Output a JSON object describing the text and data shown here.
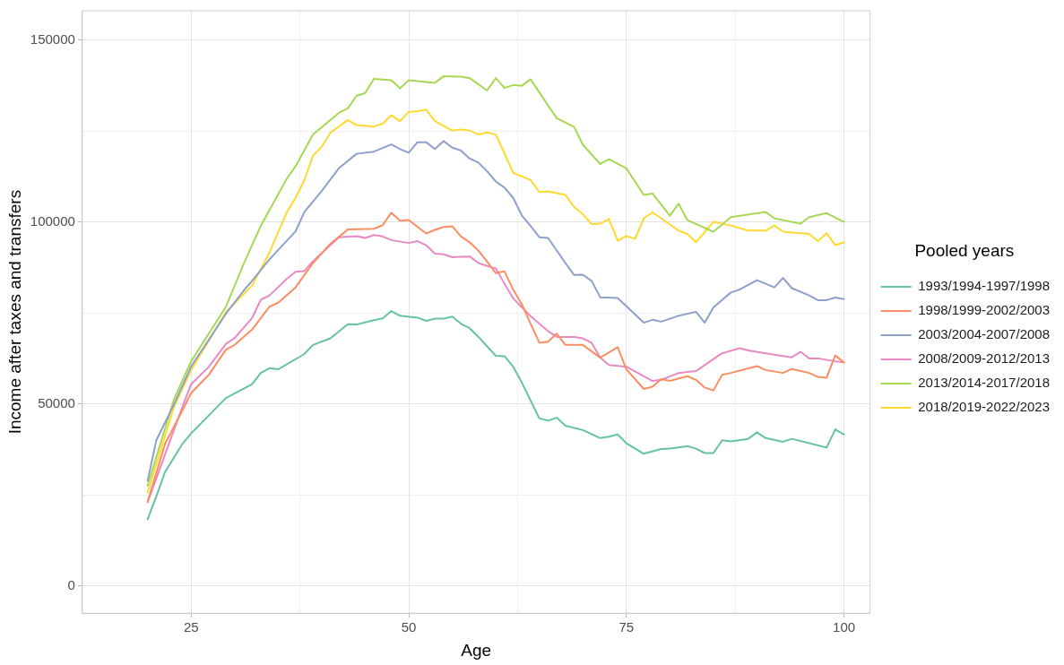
{
  "chart_data": {
    "type": "line",
    "xlabel": "Age",
    "ylabel": "Income after taxes and transfers",
    "legend_title": "Pooled years",
    "legend": "right",
    "grid": true,
    "marker": "none",
    "line_style": "solid",
    "xlim": [
      12.5,
      103
    ],
    "xticks": [
      25,
      {
        "value": 37.5,
        "label": null
      },
      50,
      {
        "value": 62.5,
        "label": null
      },
      75,
      {
        "value": 87.5,
        "label": null
      },
      100
    ],
    "ylim": [
      -7500,
      158000
    ],
    "yticks": [
      0,
      {
        "value": 25000,
        "label": null
      },
      50000,
      {
        "value": 75000,
        "label": null
      },
      100000,
      {
        "value": 125000,
        "label": null
      },
      150000
    ],
    "series": [
      {
        "name": "1993/1994-1997/1998",
        "color": "#66c2a5",
        "x": [
          20,
          21,
          22,
          24,
          25,
          29,
          32,
          33,
          34,
          35,
          38,
          39,
          41,
          43,
          44,
          46,
          47,
          48,
          49,
          51,
          52,
          53,
          54,
          55,
          56,
          57,
          58,
          59,
          60,
          61,
          62,
          63,
          64,
          65,
          66,
          67,
          68,
          70,
          72,
          73,
          74,
          75,
          77,
          79,
          80,
          82,
          83,
          84,
          85,
          86,
          87,
          89,
          90,
          91,
          93,
          94,
          96,
          98,
          99,
          100
        ],
        "values": [
          18300,
          24600,
          31300,
          39000,
          41900,
          51600,
          55400,
          58500,
          59800,
          59500,
          63700,
          66200,
          68000,
          71900,
          71800,
          73000,
          73500,
          75500,
          74200,
          73700,
          72800,
          73400,
          73400,
          74000,
          72000,
          70800,
          68400,
          65800,
          63200,
          63100,
          60200,
          55800,
          50900,
          46000,
          45400,
          46200,
          44000,
          42800,
          40600,
          41000,
          41600,
          39200,
          36300,
          37600,
          37700,
          38400,
          37700,
          36500,
          36500,
          40000,
          39700,
          40400,
          42200,
          40600,
          39600,
          40400,
          39200,
          38000,
          43000,
          41600
        ]
      },
      {
        "name": "1998/1999-2002/2003",
        "color": "#fc8d62",
        "x": [
          20,
          22,
          24,
          25,
          27,
          29,
          30,
          32,
          34,
          35,
          37,
          38,
          39,
          41,
          43,
          46,
          47,
          48,
          49,
          50,
          52,
          53,
          54,
          55,
          56,
          57,
          58,
          59,
          60,
          61,
          62,
          63,
          64,
          65,
          66,
          67,
          68,
          70,
          72,
          74,
          75,
          77,
          78,
          79,
          80,
          82,
          83,
          84,
          85,
          86,
          87,
          90,
          91,
          93,
          94,
          96,
          97,
          98,
          99,
          100
        ],
        "values": [
          23100,
          39000,
          48200,
          53000,
          57900,
          64900,
          66200,
          70400,
          76700,
          77800,
          82000,
          85400,
          88700,
          94000,
          97900,
          98100,
          99100,
          102500,
          100300,
          100500,
          96800,
          97800,
          98600,
          98800,
          96000,
          94400,
          92100,
          89100,
          85900,
          86400,
          81400,
          77300,
          72000,
          66800,
          67100,
          69300,
          66200,
          66200,
          62700,
          65600,
          59500,
          54100,
          54700,
          56800,
          56300,
          57600,
          56600,
          54500,
          53700,
          58000,
          58500,
          60400,
          59300,
          58500,
          59600,
          58500,
          57400,
          57200,
          63300,
          61400
        ]
      },
      {
        "name": "2003/2004-2007/2008",
        "color": "#8da0cb",
        "x": [
          20,
          21,
          23,
          25,
          27,
          29,
          31,
          32,
          34,
          37,
          38,
          40,
          42,
          44,
          46,
          48,
          49,
          50,
          51,
          52,
          53,
          54,
          55,
          56,
          57,
          58,
          59,
          60,
          61,
          62,
          63,
          64,
          65,
          66,
          68,
          69,
          70,
          71,
          72,
          74,
          77,
          78,
          79,
          80,
          81,
          83,
          84,
          85,
          87,
          88,
          90,
          92,
          93,
          94,
          96,
          97,
          98,
          99,
          100
        ],
        "values": [
          28900,
          40000,
          49700,
          60300,
          67500,
          74800,
          81000,
          83800,
          89700,
          97400,
          102700,
          108500,
          114800,
          118700,
          119300,
          121300,
          120000,
          119000,
          121900,
          121900,
          120000,
          122200,
          120400,
          119600,
          117400,
          116300,
          113900,
          111100,
          109400,
          106600,
          101700,
          98900,
          95800,
          95600,
          88700,
          85400,
          85500,
          83800,
          79300,
          79100,
          72300,
          73100,
          72600,
          73400,
          74200,
          75300,
          72300,
          76500,
          80600,
          81400,
          84000,
          82000,
          84600,
          81800,
          79800,
          78500,
          78500,
          79200,
          78800
        ]
      },
      {
        "name": "2008/2009-2012/2013",
        "color": "#e78ac3",
        "x": [
          20,
          22,
          24,
          25,
          27,
          29,
          30,
          32,
          33,
          34,
          36,
          37,
          38,
          39,
          42,
          44,
          45,
          46,
          47,
          48,
          50,
          51,
          52,
          53,
          54,
          55,
          57,
          58,
          59,
          60,
          61,
          62,
          63,
          64,
          65,
          66,
          67,
          69,
          70,
          71,
          72,
          73,
          75,
          78,
          79,
          81,
          83,
          85,
          86,
          88,
          89,
          91,
          94,
          95,
          96,
          97,
          99,
          100
        ],
        "values": [
          23000,
          36100,
          49200,
          55400,
          60100,
          66500,
          68100,
          73600,
          78600,
          79800,
          84400,
          86300,
          86500,
          89200,
          95800,
          96100,
          95600,
          96400,
          96000,
          95000,
          94200,
          94700,
          93600,
          91300,
          91100,
          90300,
          90500,
          88700,
          87900,
          87200,
          83000,
          79000,
          76500,
          74100,
          72000,
          70000,
          68400,
          68400,
          68000,
          66800,
          62700,
          60700,
          60200,
          56300,
          56600,
          58500,
          59000,
          62300,
          63900,
          65300,
          64700,
          63900,
          62800,
          64300,
          62500,
          62500,
          61700,
          61400
        ]
      },
      {
        "name": "2013/2014-2017/2018",
        "color": "#a6d854",
        "x": [
          20,
          23,
          25,
          29,
          31,
          33,
          35,
          36,
          37,
          39,
          40,
          42,
          43,
          44,
          45,
          46,
          48,
          49,
          50,
          53,
          54,
          56,
          57,
          59,
          60,
          61,
          62,
          63,
          64,
          66,
          67,
          69,
          70,
          72,
          73,
          75,
          77,
          78,
          80,
          81,
          82,
          85,
          86,
          87,
          91,
          92,
          95,
          96,
          98,
          100
        ],
        "values": [
          27500,
          51100,
          61700,
          76700,
          88300,
          98900,
          107600,
          111900,
          115300,
          124000,
          126000,
          130000,
          131200,
          134600,
          135400,
          139300,
          138900,
          136700,
          138900,
          138200,
          140000,
          139900,
          139500,
          136100,
          139500,
          136800,
          137600,
          137400,
          139200,
          132000,
          128500,
          126100,
          121200,
          115900,
          117200,
          114700,
          107400,
          107800,
          101700,
          105000,
          100500,
          97300,
          99300,
          101300,
          102700,
          101000,
          99500,
          101300,
          102400,
          100000
        ]
      },
      {
        "name": "2018/2019-2022/2023",
        "color": "#ffd92f",
        "x": [
          20,
          23,
          25,
          29,
          32,
          34,
          36,
          37,
          38,
          39,
          40,
          41,
          43,
          44,
          46,
          47,
          48,
          49,
          50,
          51,
          52,
          53,
          55,
          56,
          57,
          58,
          59,
          60,
          61,
          62,
          64,
          65,
          66,
          68,
          69,
          70,
          71,
          72,
          73,
          74,
          75,
          76,
          77,
          78,
          79,
          81,
          82,
          83,
          85,
          87,
          89,
          91,
          92,
          93,
          96,
          97,
          98,
          99,
          100
        ],
        "values": [
          25600,
          49000,
          59300,
          75200,
          82500,
          91600,
          102700,
          106600,
          111400,
          118200,
          120600,
          124500,
          128000,
          126600,
          126200,
          126900,
          129300,
          127700,
          130200,
          130400,
          130800,
          127700,
          125100,
          125400,
          125100,
          124000,
          124600,
          124000,
          118800,
          113500,
          111500,
          108200,
          108400,
          107400,
          104100,
          102100,
          99400,
          99500,
          100800,
          94800,
          96100,
          95300,
          101000,
          102600,
          101000,
          97600,
          96700,
          94400,
          100000,
          99000,
          97600,
          97600,
          99000,
          97300,
          96700,
          94700,
          96900,
          93600,
          94400
        ]
      }
    ]
  }
}
